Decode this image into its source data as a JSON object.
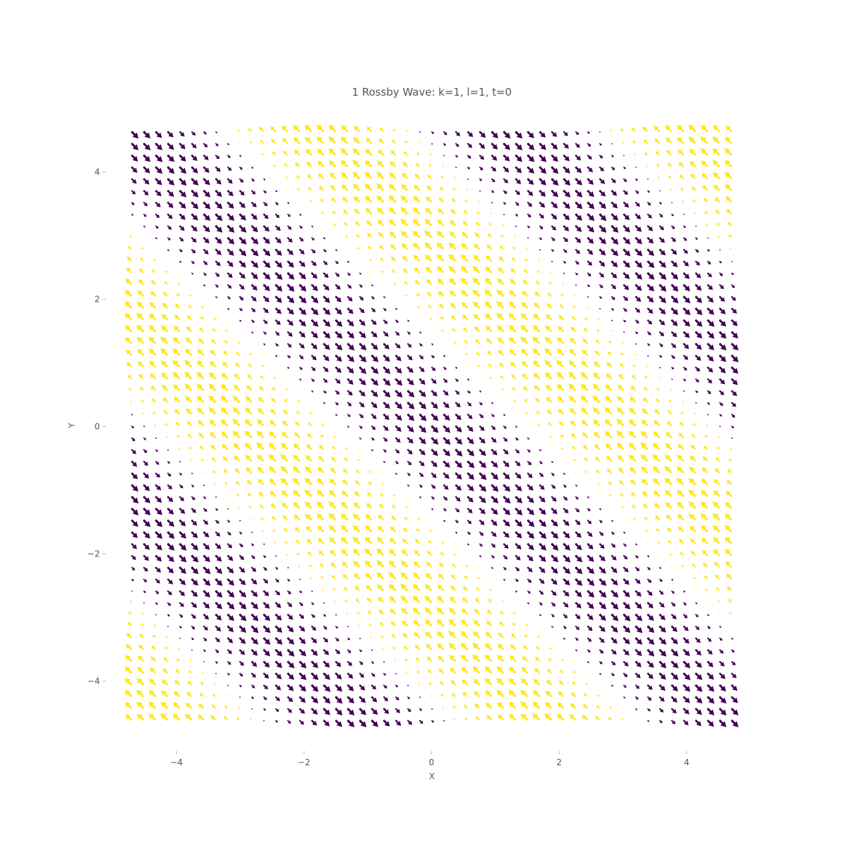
{
  "chart_data": {
    "type": "quiver",
    "title": "1 Rossby Wave: k=1, l=1, t=0",
    "xlabel": "X",
    "ylabel": "Y",
    "xlim": [
      -5.1,
      5.1
    ],
    "ylim": [
      -5.1,
      5.1
    ],
    "x_ticks": [
      -4,
      -2,
      0,
      2,
      4
    ],
    "y_ticks": [
      -4,
      -2,
      0,
      2,
      4
    ],
    "x_tick_labels": [
      "−4",
      "−2",
      "0",
      "2",
      "4"
    ],
    "y_tick_labels": [
      "−4",
      "−2",
      "0",
      "2",
      "4"
    ],
    "grid": false,
    "field": {
      "x_range": [
        -5,
        5
      ],
      "y_range": [
        -5,
        5
      ],
      "n_points": 51,
      "k": 1,
      "l": 1,
      "t": 0
    },
    "colors": {
      "positive": "#fde725",
      "negative": "#440154"
    }
  }
}
